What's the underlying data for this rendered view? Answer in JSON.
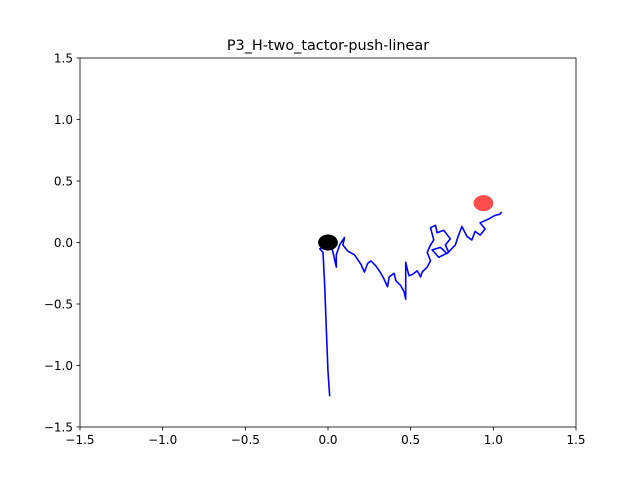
{
  "chart_data": {
    "type": "line",
    "title": "P3_H-two_tactor-push-linear",
    "xlabel": "",
    "ylabel": "",
    "xlim": [
      -1.5,
      1.5
    ],
    "ylim": [
      -1.5,
      1.5
    ],
    "grid": false,
    "x_ticks": [
      -1.5,
      -1.0,
      -0.5,
      0.0,
      0.5,
      1.0,
      1.5
    ],
    "x_tick_labels": [
      "−1.5",
      "−1.0",
      "−0.5",
      "0.0",
      "0.5",
      "1.0",
      "1.5"
    ],
    "y_ticks": [
      -1.5,
      -1.0,
      -0.5,
      0.0,
      0.5,
      1.0,
      1.5
    ],
    "y_tick_labels": [
      "−1.5",
      "−1.0",
      "−0.5",
      "0.0",
      "0.5",
      "1.0",
      "1.5"
    ],
    "series": [
      {
        "color": "#0000ff",
        "points": [
          [
            0.01,
            -1.25
          ],
          [
            0.0,
            -1.05
          ],
          [
            -0.01,
            -0.7
          ],
          [
            -0.02,
            -0.35
          ],
          [
            -0.03,
            -0.08
          ],
          [
            -0.05,
            -0.05
          ],
          [
            -0.03,
            -0.04
          ],
          [
            0.0,
            -0.06
          ],
          [
            0.02,
            -0.03
          ],
          [
            0.03,
            -0.08
          ],
          [
            0.05,
            -0.2
          ],
          [
            0.05,
            -0.1
          ],
          [
            0.07,
            -0.02
          ],
          [
            0.08,
            0.0
          ],
          [
            0.1,
            0.04
          ],
          [
            0.09,
            -0.02
          ],
          [
            0.12,
            -0.07
          ],
          [
            0.16,
            -0.1
          ],
          [
            0.18,
            -0.14
          ],
          [
            0.2,
            -0.18
          ],
          [
            0.21,
            -0.21
          ],
          [
            0.22,
            -0.24
          ],
          [
            0.24,
            -0.17
          ],
          [
            0.26,
            -0.15
          ],
          [
            0.29,
            -0.19
          ],
          [
            0.32,
            -0.25
          ],
          [
            0.34,
            -0.3
          ],
          [
            0.36,
            -0.36
          ],
          [
            0.37,
            -0.28
          ],
          [
            0.4,
            -0.25
          ],
          [
            0.41,
            -0.31
          ],
          [
            0.44,
            -0.35
          ],
          [
            0.46,
            -0.4
          ],
          [
            0.47,
            -0.46
          ],
          [
            0.47,
            -0.32
          ],
          [
            0.47,
            -0.16
          ],
          [
            0.48,
            -0.22
          ],
          [
            0.49,
            -0.27
          ],
          [
            0.51,
            -0.26
          ],
          [
            0.54,
            -0.23
          ],
          [
            0.56,
            -0.28
          ],
          [
            0.57,
            -0.24
          ],
          [
            0.6,
            -0.2
          ],
          [
            0.62,
            -0.15
          ],
          [
            0.6,
            -0.08
          ],
          [
            0.62,
            -0.02
          ],
          [
            0.64,
            0.02
          ],
          [
            0.62,
            0.12
          ],
          [
            0.65,
            0.14
          ],
          [
            0.66,
            0.08
          ],
          [
            0.7,
            0.1
          ],
          [
            0.74,
            0.03
          ],
          [
            0.71,
            -0.02
          ],
          [
            0.73,
            -0.08
          ],
          [
            0.67,
            -0.12
          ],
          [
            0.63,
            -0.06
          ],
          [
            0.68,
            -0.04
          ],
          [
            0.72,
            -0.09
          ],
          [
            0.77,
            -0.02
          ],
          [
            0.79,
            0.06
          ],
          [
            0.81,
            0.13
          ],
          [
            0.84,
            0.05
          ],
          [
            0.87,
            0.02
          ],
          [
            0.89,
            0.09
          ],
          [
            0.92,
            0.06
          ],
          [
            0.95,
            0.11
          ],
          [
            0.92,
            0.16
          ],
          [
            0.97,
            0.19
          ],
          [
            1.01,
            0.22
          ],
          [
            1.04,
            0.23
          ],
          [
            1.05,
            0.25
          ]
        ]
      }
    ],
    "markers": [
      {
        "x": 0.0,
        "y": 0.0,
        "color": "#000000",
        "rx": 0.06,
        "ry": 0.065
      },
      {
        "x": 0.94,
        "y": 0.32,
        "color": "#ff0000",
        "alpha": 0.7,
        "rx": 0.06,
        "ry": 0.065
      }
    ]
  }
}
